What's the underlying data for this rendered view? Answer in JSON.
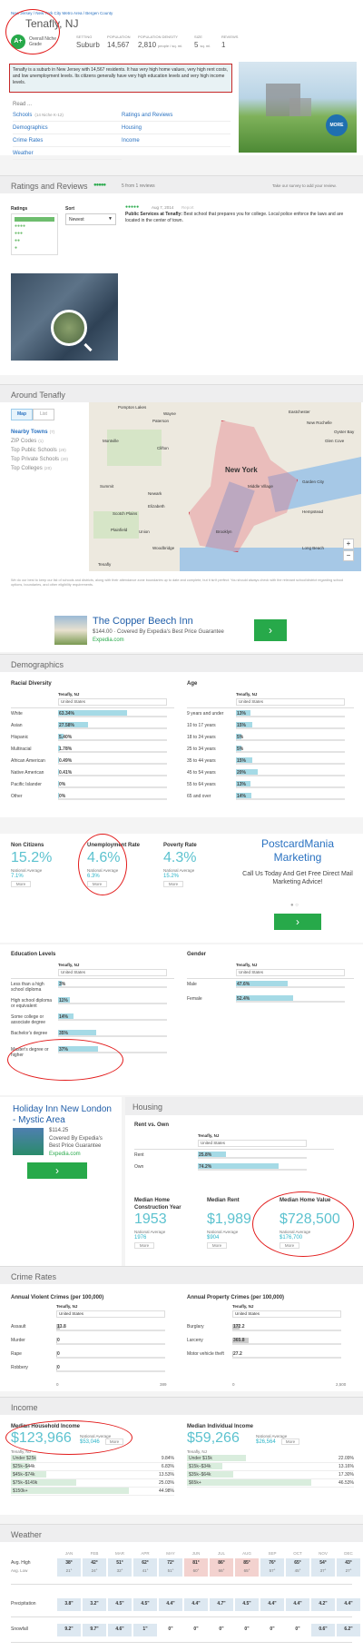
{
  "breadcrumb": "New Jersey / New York City Metro Area / Bergen County",
  "header": {
    "title": "Tenafly, NJ",
    "grade": "A+",
    "grade_label": "Overall Niche Grade",
    "stats": [
      {
        "label": "SETTING",
        "value": "Suburb"
      },
      {
        "label": "POPULATION",
        "value": "14,567"
      },
      {
        "label": "POPULATION DENSITY",
        "value": "2,810",
        "unit": "people / sq. mi."
      },
      {
        "label": "SIZE",
        "value": "5",
        "unit": "sq. mi."
      },
      {
        "label": "REVIEWS",
        "value": "1"
      }
    ],
    "description": "Tenafly is a suburb in New Jersey with 14,567 residents. It has very high home values, very high rent costs, and low unemployment levels. Its citizens generally have very high education levels and very high income levels.",
    "photo_badge": "MORE"
  },
  "read": {
    "title": "Read ...",
    "links_left": [
      "Schools",
      "Demographics",
      "Crime Rates",
      "Weather"
    ],
    "schools_extra": "(14 Niche K-12)",
    "links_right": [
      "Ratings and Reviews",
      "Housing",
      "Income"
    ]
  },
  "ratings": {
    "heading": "Ratings and Reviews",
    "count": "5 from 1 reviews",
    "take_survey": "Take our survey to add your review.",
    "ratings_label": "Ratings",
    "sort_label": "Sort",
    "sort_value": "Newest",
    "review_date": "Aug 7, 2014",
    "review_report": "Report",
    "review_title": "Public Services at Tenafly:",
    "review_text": "Best school that prepares you for college. Local police enforce the laws and are located in the center of town."
  },
  "around": {
    "heading": "Around Tenafly",
    "tab_map": "Map",
    "tab_list": "List",
    "items": [
      {
        "label": "Nearby Towns",
        "count": "(7)"
      },
      {
        "label": "ZIP Codes",
        "count": "(1)"
      },
      {
        "label": "Top Public Schools",
        "count": "(20)"
      },
      {
        "label": "Top Private Schools",
        "count": "(20)"
      },
      {
        "label": "Top Colleges",
        "count": "(20)"
      }
    ],
    "map_labels": [
      "Pompton Lakes",
      "Wayne",
      "Paterson",
      "Montville",
      "Clifton",
      "Eastchester",
      "New Rochelle",
      "Oyster Bay",
      "Glen Cove",
      "Newark",
      "New York",
      "Middle Village",
      "Garden City",
      "Hempstead",
      "Elizabeth",
      "Brooklyn",
      "Summit",
      "Scotch Plains",
      "Plainfield",
      "Union",
      "Woodbridge",
      "Long Beach",
      "Tenafly"
    ],
    "disclaimer": "We do our best to keep our list of schools and districts, along with their attendance zone boundaries up to date and complete, but it isn't perfect. You should always check with the relevant school/district regarding school options, boundaries, and other eligibility requirements."
  },
  "ad1": {
    "title": "The Copper Beech Inn",
    "line": "$144.00 · Covered By Expedia's Best Price Guarantee",
    "url": "Expedia.com"
  },
  "demographics": {
    "heading": "Demographics",
    "racial": {
      "title": "Racial Diversity",
      "col": "Tenafly, NJ",
      "compare": "United States",
      "rows": [
        {
          "label": "White",
          "value": "63.34%",
          "pct": 63.34
        },
        {
          "label": "Asian",
          "value": "27.58%",
          "pct": 27.58
        },
        {
          "label": "Hispanic",
          "value": "5.40%",
          "pct": 5.4
        },
        {
          "label": "Multiracial",
          "value": "1.78%",
          "pct": 1.78
        },
        {
          "label": "African American",
          "value": "0.49%",
          "pct": 0.49
        },
        {
          "label": "Native American",
          "value": "0.41%",
          "pct": 0.41
        },
        {
          "label": "Pacific Islander",
          "value": "0%",
          "pct": 0
        },
        {
          "label": "Other",
          "value": "0%",
          "pct": 0
        }
      ]
    },
    "age": {
      "title": "Age",
      "col": "Tenafly, NJ",
      "compare": "United States",
      "rows": [
        {
          "label": "9 years and under",
          "value": "13%",
          "pct": 13
        },
        {
          "label": "10 to 17 years",
          "value": "15%",
          "pct": 15
        },
        {
          "label": "18 to 24 years",
          "value": "5%",
          "pct": 5
        },
        {
          "label": "25 to 34 years",
          "value": "5%",
          "pct": 5
        },
        {
          "label": "35 to 44 years",
          "value": "15%",
          "pct": 15
        },
        {
          "label": "45 to 54 years",
          "value": "20%",
          "pct": 20
        },
        {
          "label": "55 to 64 years",
          "value": "13%",
          "pct": 13
        },
        {
          "label": "65 and over",
          "value": "14%",
          "pct": 14
        }
      ]
    },
    "stats": [
      {
        "title": "Non Citizens",
        "value": "15.2%",
        "nat_label": "National Average",
        "nat": "7.1%",
        "more": "More"
      },
      {
        "title": "Unemployment Rate",
        "value": "4.6%",
        "nat_label": "National Average",
        "nat": "6.3%",
        "more": "More"
      },
      {
        "title": "Poverty Rate",
        "value": "4.3%",
        "nat_label": "National Average",
        "nat": "15.2%",
        "more": "More"
      }
    ],
    "education": {
      "title": "Education Levels",
      "col": "Tenafly, NJ",
      "compare": "United States",
      "rows": [
        {
          "label": "Less than a high school diploma",
          "value": "3%",
          "pct": 3
        },
        {
          "label": "High school diploma or equivalent",
          "value": "11%",
          "pct": 11
        },
        {
          "label": "Some college or associate degree",
          "value": "14%",
          "pct": 14
        },
        {
          "label": "Bachelor's degree",
          "value": "35%",
          "pct": 35
        },
        {
          "label": "Master's degree or higher",
          "value": "37%",
          "pct": 37
        }
      ]
    },
    "gender": {
      "title": "Gender",
      "col": "Tenafly, NJ",
      "compare": "United States",
      "rows": [
        {
          "label": "Male",
          "value": "47.6%",
          "pct": 47.6
        },
        {
          "label": "Female",
          "value": "52.4%",
          "pct": 52.4
        }
      ]
    }
  },
  "ad2": {
    "title": "PostcardMania Marketing",
    "text": "Call Us Today And Get Free Direct Mail Marketing Advice!"
  },
  "ad3": {
    "title": "Holiday Inn New London - Mystic Area",
    "price": "$114.25",
    "line": "Covered By Expedia's Best Price Guarantee",
    "url": "Expedia.com"
  },
  "housing": {
    "heading": "Housing",
    "rent_title": "Rent vs. Own",
    "col": "Tenafly, NJ",
    "compare": "United States",
    "rows": [
      {
        "label": "Rent",
        "value": "25.8%",
        "pct": 25.8
      },
      {
        "label": "Own",
        "value": "74.2%",
        "pct": 74.2
      }
    ],
    "stats": [
      {
        "title": "Median Home Construction Year",
        "value": "1953",
        "nat_label": "National Average",
        "nat": "1976",
        "more": "More"
      },
      {
        "title": "Median Rent",
        "value": "$1,989",
        "nat_label": "National Average",
        "nat": "$904",
        "more": "More"
      },
      {
        "title": "Median Home Value",
        "value": "$728,500",
        "nat_label": "National Average",
        "nat": "$176,700",
        "more": "More"
      }
    ]
  },
  "crime": {
    "heading": "Crime Rates",
    "violent_title": "Annual Violent Crimes (per 100,000)",
    "property_title": "Annual Property Crimes (per 100,000)",
    "col": "Tenafly, NJ",
    "compare": "United States",
    "violent": [
      {
        "label": "Assault",
        "value": "13.8"
      },
      {
        "label": "Murder",
        "value": "0"
      },
      {
        "label": "Rape",
        "value": "0"
      },
      {
        "label": "Robbery",
        "value": "0"
      }
    ],
    "violent_axis": [
      "0",
      "389"
    ],
    "property": [
      {
        "label": "Burglary",
        "value": "172.2"
      },
      {
        "label": "Larceny",
        "value": "365.8"
      },
      {
        "label": "Motor vehicle theft",
        "value": "27.2"
      }
    ],
    "property_axis": [
      "0",
      "2,500"
    ]
  },
  "income": {
    "heading": "Income",
    "household_title": "Median Household Income",
    "household_value": "$123,966",
    "household_nat_label": "National Average",
    "household_nat": "$53,046",
    "individual_title": "Median Individual Income",
    "individual_value": "$59,266",
    "individual_nat_label": "National Average",
    "individual_nat": "$26,564",
    "more": "More",
    "col": "Tenafly, NJ",
    "household_rows": [
      {
        "label": "Under $25k",
        "value": "9.84%",
        "pct": 9.84
      },
      {
        "label": "$25k–$44k",
        "value": "6.83%",
        "pct": 6.83
      },
      {
        "label": "$45k–$74k",
        "value": "13.53%",
        "pct": 13.53
      },
      {
        "label": "$75k–$149k",
        "value": "25.03%",
        "pct": 25.03
      },
      {
        "label": "$150k+",
        "value": "44.98%",
        "pct": 44.98
      }
    ],
    "individual_rows": [
      {
        "label": "Under $15k",
        "value": "22.09%",
        "pct": 22.09
      },
      {
        "label": "$15k–$34k",
        "value": "13.16%",
        "pct": 13.16
      },
      {
        "label": "$35k–$64k",
        "value": "17.30%",
        "pct": 17.3
      },
      {
        "label": "$65k+",
        "value": "46.53%",
        "pct": 46.53
      }
    ]
  },
  "weather": {
    "heading": "Weather",
    "months": [
      "JAN",
      "FEB",
      "MAR",
      "APR",
      "MAY",
      "JUN",
      "JUL",
      "AUG",
      "SEP",
      "OCT",
      "NOV",
      "DEC"
    ],
    "high_label": "Avg. High",
    "low_label": "Avg. Low",
    "precip_label": "Precipitation",
    "snow_label": "Snowfall",
    "high": [
      "38°",
      "42°",
      "51°",
      "62°",
      "72°",
      "81°",
      "86°",
      "85°",
      "76°",
      "65°",
      "54°",
      "43°"
    ],
    "low": [
      "21°",
      "24°",
      "32°",
      "41°",
      "51°",
      "60°",
      "66°",
      "65°",
      "57°",
      "45°",
      "37°",
      "27°"
    ],
    "precip": [
      "3.8\"",
      "3.2\"",
      "4.5\"",
      "4.5\"",
      "4.4\"",
      "4.4\"",
      "4.7\"",
      "4.5\"",
      "4.4\"",
      "4.4\"",
      "4.2\"",
      "4.4\""
    ],
    "snow": [
      "9.2\"",
      "9.7\"",
      "4.6\"",
      "1\"",
      "0\"",
      "0\"",
      "0\"",
      "0\"",
      "0\"",
      "0\"",
      "0.6\"",
      "6.2\""
    ]
  },
  "colors": {
    "teal": "#5cc2cf",
    "bar": "#a5dae6",
    "green": "#27a94a",
    "red_annotation": "#e21b1b",
    "link": "#2a72c1"
  }
}
